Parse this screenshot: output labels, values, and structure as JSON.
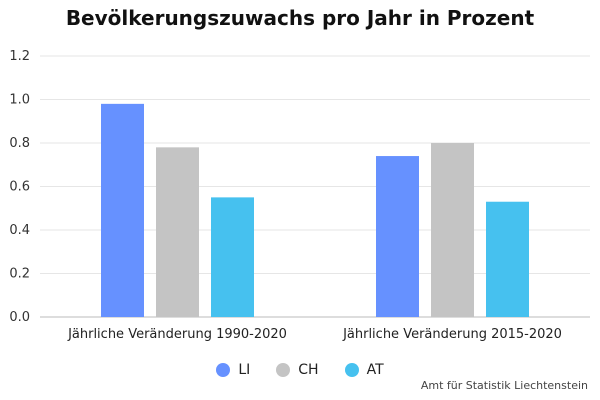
{
  "chart_data": {
    "type": "bar",
    "title": "Bevölkerungszuwachs pro Jahr in Prozent",
    "categories": [
      "Jährliche Veränderung 1990-2020",
      "Jährliche Veränderung 2015-2020"
    ],
    "series": [
      {
        "name": "LI",
        "values": [
          0.98,
          0.74
        ],
        "color": "#6691ff"
      },
      {
        "name": "CH",
        "values": [
          0.78,
          0.8
        ],
        "color": "#c4c4c4"
      },
      {
        "name": "AT",
        "values": [
          0.55,
          0.53
        ],
        "color": "#46c1ef"
      }
    ],
    "yticks": [
      "0.0",
      "0.2",
      "0.4",
      "0.6",
      "0.8",
      "1.0",
      "1.2"
    ],
    "ylim": [
      0,
      1.2
    ],
    "grid": true,
    "legend_position": "bottom"
  },
  "source": "Amt für Statistik Liechtenstein"
}
